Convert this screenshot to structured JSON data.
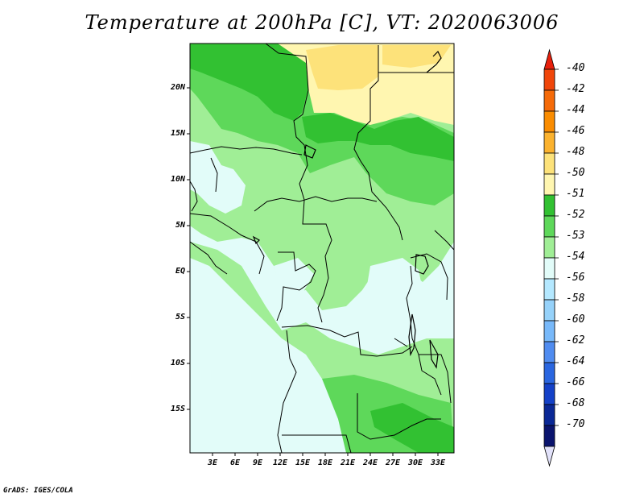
{
  "title": "Temperature at 200hPa [C], VT: 2020063006",
  "credit": "GrADS: IGES/COLA",
  "lat_ticks": [
    "20N",
    "15N",
    "10N",
    "5N",
    "EQ",
    "5S",
    "10S",
    "15S"
  ],
  "lon_ticks": [
    "3E",
    "6E",
    "9E",
    "12E",
    "15E",
    "18E",
    "21E",
    "24E",
    "27E",
    "30E",
    "33E"
  ],
  "colorbar": {
    "labels": [
      "-40",
      "-42",
      "-44",
      "-46",
      "-48",
      "-50",
      "-51",
      "-52",
      "-53",
      "-54",
      "-56",
      "-58",
      "-60",
      "-62",
      "-64",
      "-66",
      "-68",
      "-70"
    ],
    "colors": [
      "#e8200c",
      "#f0460a",
      "#f56a08",
      "#fa8c00",
      "#fbb22e",
      "#fde27a",
      "#fff6b0",
      "#32c132",
      "#5ed85a",
      "#a0ee96",
      "#e2fcf9",
      "#b4e8ff",
      "#96d2fa",
      "#78b9fa",
      "#508cf0",
      "#2a66e0",
      "#1441c8",
      "#0a2896",
      "#0a146e"
    ],
    "top_tip_color": "#e8200c",
    "bottom_tip_color": "#e2e2fa"
  }
}
